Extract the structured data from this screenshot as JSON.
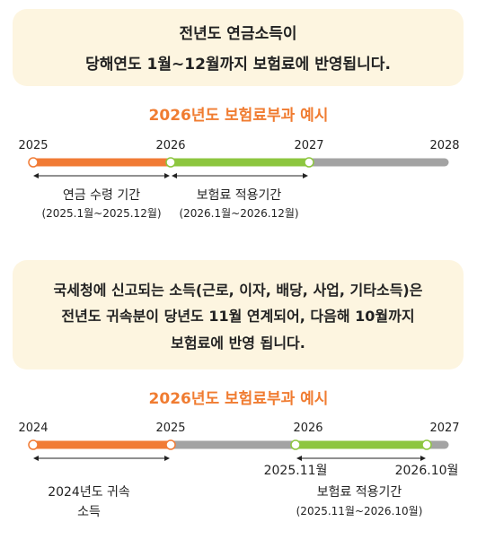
{
  "colors": {
    "box_background": "#fdf5e0",
    "title_orange": "#f07c31",
    "bar_orange": "#f17b35",
    "bar_green": "#8dc63f",
    "bar_gray": "#a3a3a3"
  },
  "box1": {
    "line1": "전년도 연금소득이",
    "line2": "당해연도 1월~12월까지 보험료에 반영됩니다."
  },
  "section1": {
    "title": "2026년도 보험료부과 예시",
    "years": [
      "2025",
      "2026",
      "2027",
      "2028"
    ],
    "bars": [
      {
        "color": "orange",
        "from": "2025",
        "to": "2026"
      },
      {
        "color": "green",
        "from": "2026",
        "to": "2027"
      },
      {
        "color": "gray",
        "from": "2027",
        "to": "2028"
      }
    ],
    "span1": {
      "label": "연금 수령 기간",
      "sub": "(2025.1월~2025.12월)"
    },
    "span2": {
      "label": "보험료 적용기간",
      "sub": "(2026.1월~2026.12월)"
    }
  },
  "box2": {
    "line1": "국세청에 신고되는 소득(근로, 이자, 배당, 사업, 기타소득)은",
    "line2": "전년도 귀속분이 당년도 11월 연계되어, 다음해 10월까지",
    "line3": "보험료에 반영 됩니다."
  },
  "section2": {
    "title": "2026년도 보험료부과 예시",
    "years": [
      "2024",
      "2025",
      "2026",
      "2027"
    ],
    "bars": [
      {
        "color": "orange",
        "from": "2024",
        "to": "2025"
      },
      {
        "color": "gray",
        "from": "2025",
        "to": "2025.11"
      },
      {
        "color": "green",
        "from": "2025.11",
        "to": "2026.10"
      },
      {
        "color": "gray",
        "from": "2026.10",
        "to": "2027"
      }
    ],
    "point_start": "2025.11월",
    "point_end": "2026.10월",
    "span1": {
      "label_line1": "2024년도 귀속",
      "label_line2": "소득"
    },
    "span2": {
      "label": "보험료 적용기간",
      "sub": "(2025.11월~2026.10월)"
    }
  }
}
